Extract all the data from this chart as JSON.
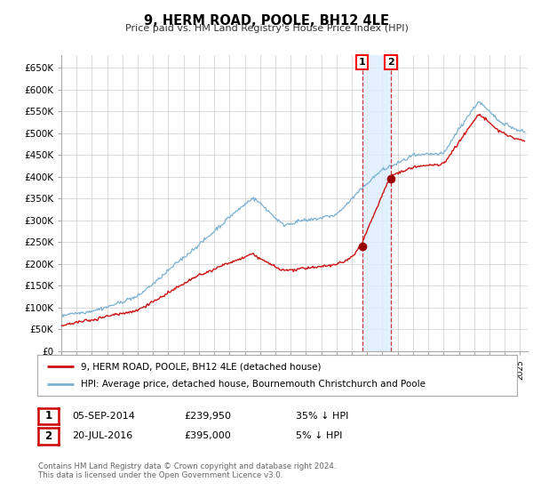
{
  "title": "9, HERM ROAD, POOLE, BH12 4LE",
  "subtitle": "Price paid vs. HM Land Registry's House Price Index (HPI)",
  "ylim": [
    0,
    680000
  ],
  "yticks": [
    0,
    50000,
    100000,
    150000,
    200000,
    250000,
    300000,
    350000,
    400000,
    450000,
    500000,
    550000,
    600000,
    650000
  ],
  "ytick_labels": [
    "£0",
    "£50K",
    "£100K",
    "£150K",
    "£200K",
    "£250K",
    "£300K",
    "£350K",
    "£400K",
    "£450K",
    "£500K",
    "£550K",
    "£600K",
    "£650K"
  ],
  "hpi_color": "#7ab0d4",
  "price_color": "#cc1111",
  "marker_color": "#990000",
  "sale1_date": 2014.67,
  "sale1_price": 239950,
  "sale2_date": 2016.55,
  "sale2_price": 395000,
  "legend_label1": "9, HERM ROAD, POOLE, BH12 4LE (detached house)",
  "legend_label2": "HPI: Average price, detached house, Bournemouth Christchurch and Poole",
  "table_row1": [
    "1",
    "05-SEP-2014",
    "£239,950",
    "35% ↓ HPI"
  ],
  "table_row2": [
    "2",
    "20-JUL-2016",
    "£395,000",
    "5% ↓ HPI"
  ],
  "footnote": "Contains HM Land Registry data © Crown copyright and database right 2024.\nThis data is licensed under the Open Government Licence v3.0.",
  "background_color": "#ffffff",
  "grid_color": "#cccccc",
  "shade_color": "#ddeeff"
}
